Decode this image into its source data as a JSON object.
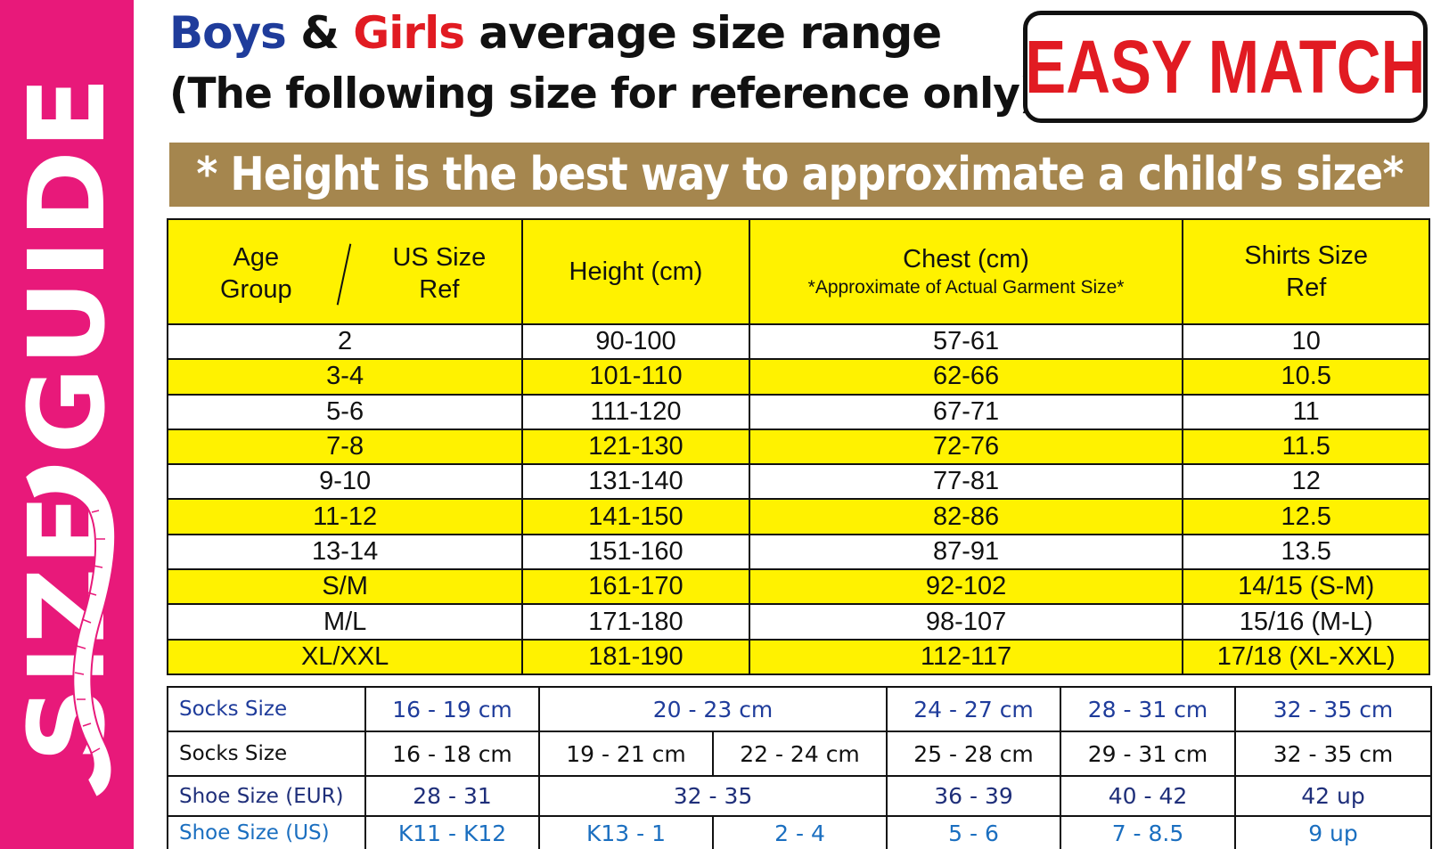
{
  "side_banner": {
    "text": "SIZE GUIDE",
    "color": "#e8197a"
  },
  "header": {
    "boys": "Boys",
    "amp": " & ",
    "girls": "Girls",
    "rest": " average size range",
    "line2": "(The following size for reference only)",
    "badge": "EASY MATCH"
  },
  "strip": {
    "text": "* Height is the best way to approximate a child’s size*"
  },
  "main_table": {
    "headers": {
      "age_line1": "Age",
      "age_line2": "Group",
      "us_line1": "US Size",
      "us_line2": "Ref",
      "height": "Height (cm)",
      "chest": "Chest (cm)",
      "chest_note": "*Approximate of Actual Garment Size*",
      "shirts_line1": "Shirts Size",
      "shirts_line2": "Ref"
    },
    "rows": [
      {
        "age": "2",
        "height": "90-100",
        "chest": "57-61",
        "shirt": "10"
      },
      {
        "age": "3-4",
        "height": "101-110",
        "chest": "62-66",
        "shirt": "10.5"
      },
      {
        "age": "5-6",
        "height": "111-120",
        "chest": "67-71",
        "shirt": "11"
      },
      {
        "age": "7-8",
        "height": "121-130",
        "chest": "72-76",
        "shirt": "11.5"
      },
      {
        "age": "9-10",
        "height": "131-140",
        "chest": "77-81",
        "shirt": "12"
      },
      {
        "age": "11-12",
        "height": "141-150",
        "chest": "82-86",
        "shirt": "12.5"
      },
      {
        "age": "13-14",
        "height": "151-160",
        "chest": "87-91",
        "shirt": "13.5"
      },
      {
        "age": "S/M",
        "height": "161-170",
        "chest": "92-102",
        "shirt": "14/15 (S-M)"
      },
      {
        "age": "M/L",
        "height": "171-180",
        "chest": "98-107",
        "shirt": "15/16 (M-L)"
      },
      {
        "age": "XL/XXL",
        "height": "181-190",
        "chest": "112-117",
        "shirt": "17/18 (XL-XXL)"
      }
    ]
  },
  "sock_table": {
    "row1": {
      "label": "Socks Size",
      "c1": "16 - 19 cm",
      "c2": "20 - 23 cm",
      "c3": "24 - 27 cm",
      "c4": "28 - 31 cm",
      "c5": "32 - 35 cm"
    },
    "row2": {
      "label": "Socks Size",
      "c1": "16 - 18 cm",
      "c2a": "19 - 21 cm",
      "c2b": "22 - 24 cm",
      "c3": "25 - 28 cm",
      "c4": "29 - 31 cm",
      "c5": "32 - 35 cm"
    },
    "row3": {
      "label": "Shoe Size (EUR)",
      "c1": "28 - 31",
      "c2": "32 - 35",
      "c3": "36 - 39",
      "c4": "40 - 42",
      "c5": "42 up"
    },
    "row4": {
      "label": "Shoe Size (US)",
      "c1": "K11 - K12",
      "c2a": "K13 - 1",
      "c2b": "2 - 4",
      "c3": "5 - 6",
      "c4": "7 - 8.5",
      "c5": "9 up"
    }
  }
}
